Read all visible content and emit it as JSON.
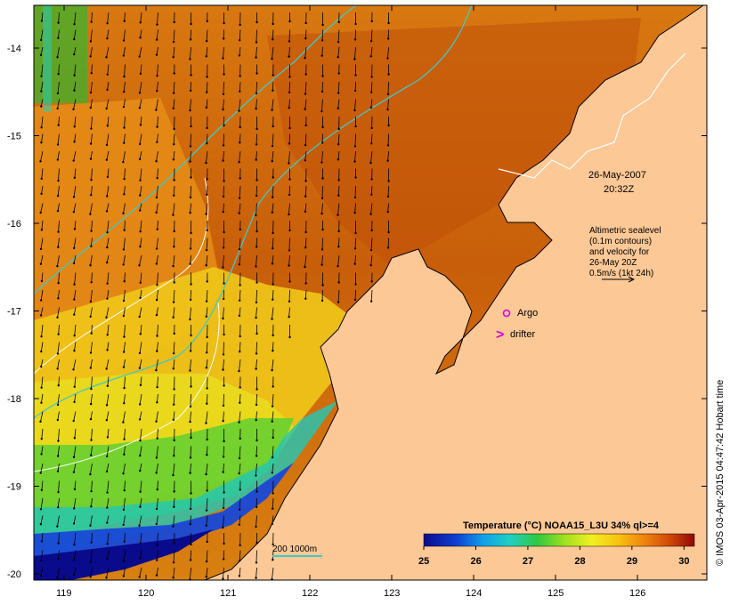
{
  "map": {
    "date": "26-May-2007",
    "time": "20:32Z",
    "altimetry_note": [
      "Altimetric sealevel",
      "(0.1m contours)",
      "and velocity for",
      "26-May 20Z",
      "0.5m/s (1kt 24h)"
    ],
    "legend": {
      "argo": "Argo",
      "drifter": "drifter",
      "argo_color": "#e000e0",
      "drifter_color": "#e000e0"
    },
    "depth_legend": "200  1000m",
    "depth_contour_color": "#40c8c8",
    "credit": "© IMOS 03-Apr-2015 04:47:42 Hobart time",
    "colorbar": {
      "title": "Temperature (°C) NOAA15_L3U 34% ql>=4",
      "ticks": [
        "25",
        "26",
        "27",
        "28",
        "29",
        "30"
      ],
      "min": 25,
      "max": 30.2
    },
    "lon_ticks": [
      "119",
      "120",
      "121",
      "122",
      "123",
      "124",
      "125",
      "126"
    ],
    "lat_ticks": [
      "-14",
      "-15",
      "-16",
      "-17",
      "-18",
      "-19",
      "-20"
    ],
    "land_color": "#fcc896",
    "sea_warm_color": "#d2700a"
  }
}
